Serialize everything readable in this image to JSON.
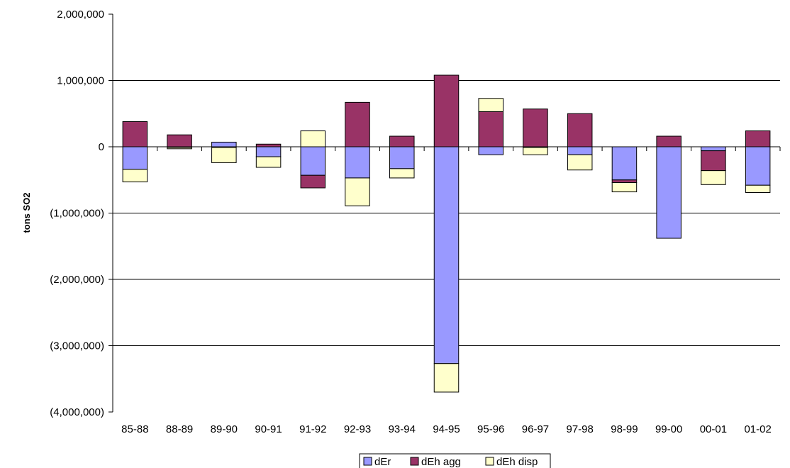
{
  "chart_data": {
    "type": "bar",
    "stacked": true,
    "title": "",
    "xlabel": "",
    "ylabel": "tons SO2",
    "ylim": [
      -4000000,
      2000000
    ],
    "y_ticks": [
      2000000,
      1000000,
      0,
      -1000000,
      -2000000,
      -3000000,
      -4000000
    ],
    "y_tick_labels": [
      "2,000,000",
      "1,000,000",
      "0",
      "(1,000,000)",
      "(2,000,000)",
      "(3,000,000)",
      "(4,000,000)"
    ],
    "grid": true,
    "legend_position": "bottom",
    "categories": [
      "85-88",
      "88-89",
      "89-90",
      "90-91",
      "91-92",
      "92-93",
      "93-94",
      "94-95",
      "95-96",
      "96-97",
      "97-98",
      "98-99",
      "99-00",
      "00-01",
      "01-02"
    ],
    "series": [
      {
        "name": "dEr",
        "color": "#9999ff",
        "values": [
          -340000,
          -10000,
          70000,
          -150000,
          -430000,
          -470000,
          -330000,
          -3270000,
          -120000,
          -10000,
          -120000,
          -500000,
          -1380000,
          -60000,
          -580000
        ]
      },
      {
        "name": "dEh agg",
        "color": "#993366",
        "values": [
          380000,
          180000,
          -10000,
          40000,
          -190000,
          670000,
          160000,
          1080000,
          530000,
          570000,
          500000,
          -40000,
          160000,
          -300000,
          240000
        ]
      },
      {
        "name": "dEh disp",
        "color": "#ffffcc",
        "values": [
          -190000,
          -20000,
          -230000,
          -160000,
          240000,
          -420000,
          -140000,
          -430000,
          200000,
          -110000,
          -230000,
          -140000,
          0,
          -210000,
          -110000
        ]
      }
    ]
  }
}
